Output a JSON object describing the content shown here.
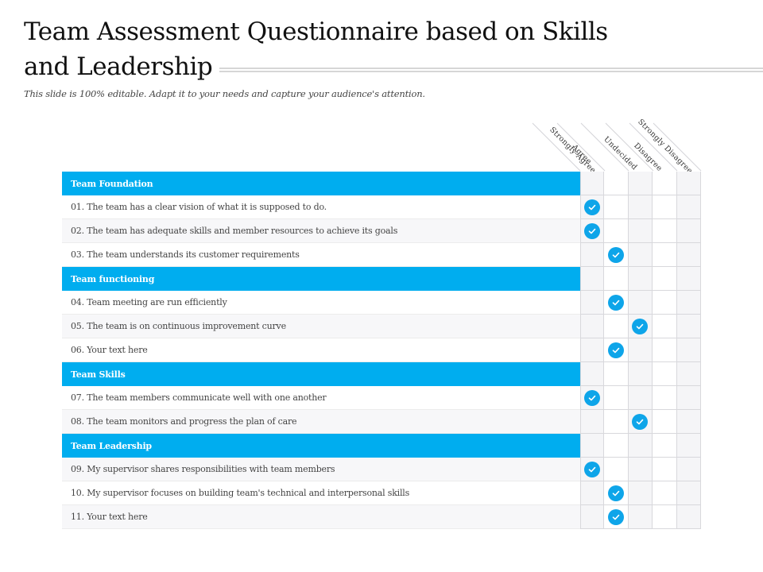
{
  "header": {
    "title_line1": "Team Assessment Questionnaire based on Skills",
    "title_line2": "and Leadership",
    "subtitle": "This slide is 100% editable. Adapt it to your needs and capture your audience's attention."
  },
  "columns": [
    "Strongly Agree",
    "Agree",
    "Undecided",
    "Disagree",
    "Strongly Disagree"
  ],
  "colors": {
    "accent": "#00adef",
    "check": "#0ea5e9",
    "row_alt": "#f7f7f9"
  },
  "icons": {
    "check": "check-circle-icon"
  },
  "sections": [
    {
      "title": "Team Foundation",
      "items": [
        {
          "text": "01. The team has a clear vision of what it is supposed to do.",
          "answer": 0
        },
        {
          "text": "02. The team has adequate skills and member resources to achieve its goals",
          "answer": 0
        },
        {
          "text": "03. The team understands its customer requirements",
          "answer": 1
        }
      ]
    },
    {
      "title": "Team functioning",
      "items": [
        {
          "text": "04. Team meeting are run efficiently",
          "answer": 1
        },
        {
          "text": "05. The team is on continuous improvement curve",
          "answer": 2
        },
        {
          "text": "06. Your text here",
          "answer": 1
        }
      ]
    },
    {
      "title": "Team Skills",
      "items": [
        {
          "text": "07. The team members communicate well with one another",
          "answer": 0
        },
        {
          "text": "08. The team monitors and progress the plan of care",
          "answer": 2
        }
      ]
    },
    {
      "title": "Team Leadership",
      "items": [
        {
          "text": "09. My supervisor shares responsibilities with team members",
          "answer": 0
        },
        {
          "text": "10. My supervisor focuses on building team's technical and interpersonal skills",
          "answer": 1
        },
        {
          "text": "11. Your text here",
          "answer": 1
        }
      ]
    }
  ]
}
